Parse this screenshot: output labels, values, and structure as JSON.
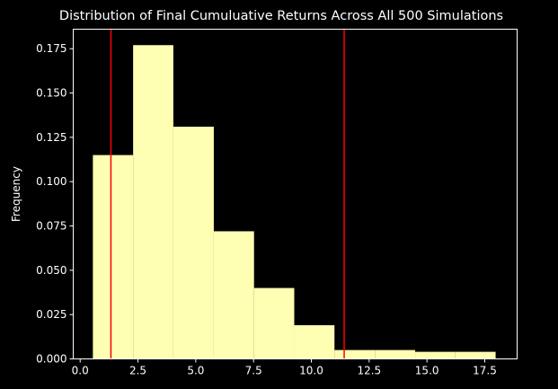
{
  "chart_data": {
    "type": "bar",
    "title": "Distribution of Final Cumuluative Returns Across All 500 Simulations",
    "xlabel": "",
    "ylabel": "Frequency",
    "xlim": [
      -0.3,
      18.9
    ],
    "ylim": [
      0,
      0.186
    ],
    "x_ticks": [
      0.0,
      2.5,
      5.0,
      7.5,
      10.0,
      12.5,
      15.0,
      17.5
    ],
    "x_tick_labels": [
      "0.0",
      "2.5",
      "5.0",
      "7.5",
      "10.0",
      "12.5",
      "15.0",
      "17.5"
    ],
    "y_ticks": [
      0.0,
      0.025,
      0.05,
      0.075,
      0.1,
      0.125,
      0.15,
      0.175
    ],
    "y_tick_labels": [
      "0.000",
      "0.025",
      "0.050",
      "0.075",
      "0.100",
      "0.125",
      "0.150",
      "0.175"
    ],
    "bins": [
      {
        "start": 0.55,
        "end": 2.29,
        "value": 0.115
      },
      {
        "start": 2.29,
        "end": 4.03,
        "value": 0.177
      },
      {
        "start": 4.03,
        "end": 5.78,
        "value": 0.131
      },
      {
        "start": 5.78,
        "end": 7.52,
        "value": 0.072
      },
      {
        "start": 7.52,
        "end": 9.26,
        "value": 0.04
      },
      {
        "start": 9.26,
        "end": 11.0,
        "value": 0.019
      },
      {
        "start": 11.0,
        "end": 12.75,
        "value": 0.005
      },
      {
        "start": 12.75,
        "end": 14.49,
        "value": 0.005
      },
      {
        "start": 14.49,
        "end": 16.23,
        "value": 0.004
      },
      {
        "start": 16.23,
        "end": 17.97,
        "value": 0.004
      }
    ],
    "vlines": [
      1.33,
      11.42
    ],
    "bar_color": "#ffffb3",
    "line_color": "#ff0000",
    "background": "#000000",
    "axis_color": "#ffffff"
  }
}
